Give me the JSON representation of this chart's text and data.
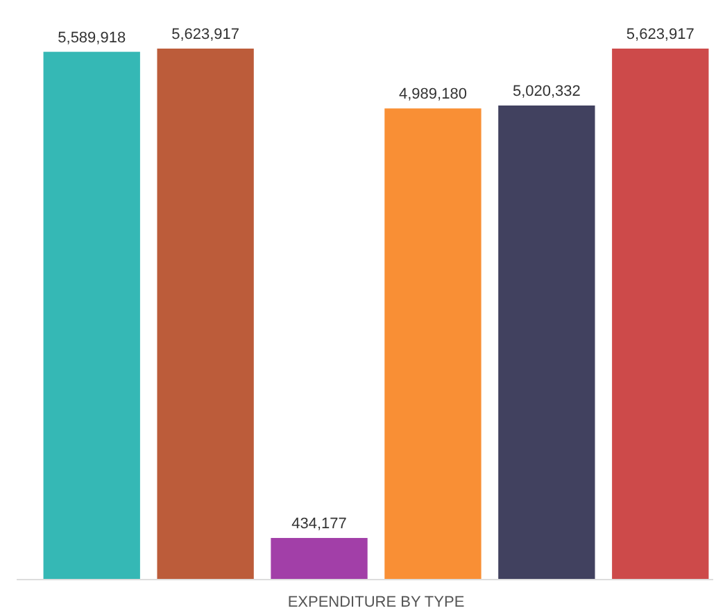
{
  "chart_data": {
    "type": "bar",
    "xlabel": "EXPENDITURE BY TYPE",
    "categories": [
      null,
      null,
      null,
      null,
      null,
      null
    ],
    "values": [
      5589918,
      5623917,
      434177,
      4989180,
      5020332,
      5623917
    ],
    "value_labels": [
      "5,589,918",
      "5,623,917",
      "434,177",
      "4,989,180",
      "5,020,332",
      "5,623,917"
    ],
    "colors": [
      "#35b8b5",
      "#bc5c3a",
      "#a23fa8",
      "#f98f35",
      "#41415f",
      "#cd4a4a"
    ]
  }
}
